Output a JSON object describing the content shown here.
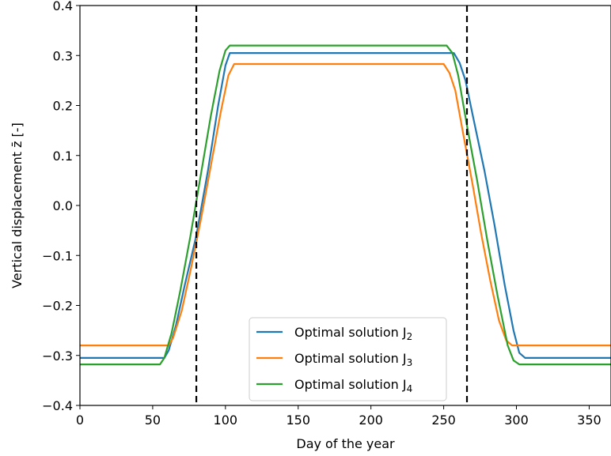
{
  "chart_data": {
    "type": "line",
    "xlabel": "Day of the year",
    "ylabel": "Vertical displacement z̄ [-]",
    "xlim": [
      0,
      365
    ],
    "ylim": [
      -0.4,
      0.4
    ],
    "xticks": [
      0,
      50,
      100,
      150,
      200,
      250,
      300,
      350
    ],
    "yticks": [
      -0.4,
      -0.3,
      -0.2,
      -0.1,
      0.0,
      0.1,
      0.2,
      0.3,
      0.4
    ],
    "xtick_labels": [
      "0",
      "50",
      "100",
      "150",
      "200",
      "250",
      "300",
      "350"
    ],
    "ytick_labels": [
      "−0.4",
      "−0.3",
      "−0.2",
      "−0.1",
      "0.0",
      "0.1",
      "0.2",
      "0.3",
      "0.4"
    ],
    "grid": false,
    "legend_position": "lower-center",
    "vlines": [
      80,
      266
    ],
    "series": [
      {
        "name": "Optimal solution J",
        "subscript": "2",
        "color": "#1f77b4",
        "points": [
          [
            0,
            -0.305
          ],
          [
            58,
            -0.305
          ],
          [
            61,
            -0.29
          ],
          [
            66,
            -0.24
          ],
          [
            72,
            -0.16
          ],
          [
            80,
            -0.06
          ],
          [
            88,
            0.07
          ],
          [
            95,
            0.2
          ],
          [
            100,
            0.28
          ],
          [
            103,
            0.305
          ],
          [
            257,
            0.305
          ],
          [
            261,
            0.285
          ],
          [
            265,
            0.25
          ],
          [
            270,
            0.18
          ],
          [
            278,
            0.07
          ],
          [
            285,
            -0.04
          ],
          [
            292,
            -0.16
          ],
          [
            298,
            -0.25
          ],
          [
            302,
            -0.295
          ],
          [
            306,
            -0.305
          ],
          [
            365,
            -0.305
          ]
        ]
      },
      {
        "name": "Optimal solution J",
        "subscript": "3",
        "color": "#ff7f0e",
        "points": [
          [
            0,
            -0.28
          ],
          [
            61,
            -0.28
          ],
          [
            64,
            -0.265
          ],
          [
            70,
            -0.21
          ],
          [
            76,
            -0.13
          ],
          [
            83,
            -0.03
          ],
          [
            90,
            0.08
          ],
          [
            97,
            0.19
          ],
          [
            102,
            0.26
          ],
          [
            106,
            0.283
          ],
          [
            250,
            0.283
          ],
          [
            254,
            0.265
          ],
          [
            258,
            0.23
          ],
          [
            263,
            0.15
          ],
          [
            270,
            0.04
          ],
          [
            276,
            -0.06
          ],
          [
            282,
            -0.15
          ],
          [
            288,
            -0.23
          ],
          [
            293,
            -0.27
          ],
          [
            297,
            -0.28
          ],
          [
            365,
            -0.28
          ]
        ]
      },
      {
        "name": "Optimal solution J",
        "subscript": "4",
        "color": "#2ca02c",
        "points": [
          [
            0,
            -0.318
          ],
          [
            55,
            -0.318
          ],
          [
            58,
            -0.305
          ],
          [
            63,
            -0.255
          ],
          [
            69,
            -0.17
          ],
          [
            76,
            -0.06
          ],
          [
            83,
            0.06
          ],
          [
            90,
            0.18
          ],
          [
            96,
            0.27
          ],
          [
            100,
            0.31
          ],
          [
            103,
            0.32
          ],
          [
            252,
            0.32
          ],
          [
            256,
            0.305
          ],
          [
            260,
            0.26
          ],
          [
            266,
            0.16
          ],
          [
            273,
            0.05
          ],
          [
            280,
            -0.07
          ],
          [
            287,
            -0.18
          ],
          [
            294,
            -0.28
          ],
          [
            298,
            -0.31
          ],
          [
            302,
            -0.318
          ],
          [
            365,
            -0.318
          ]
        ]
      }
    ]
  }
}
